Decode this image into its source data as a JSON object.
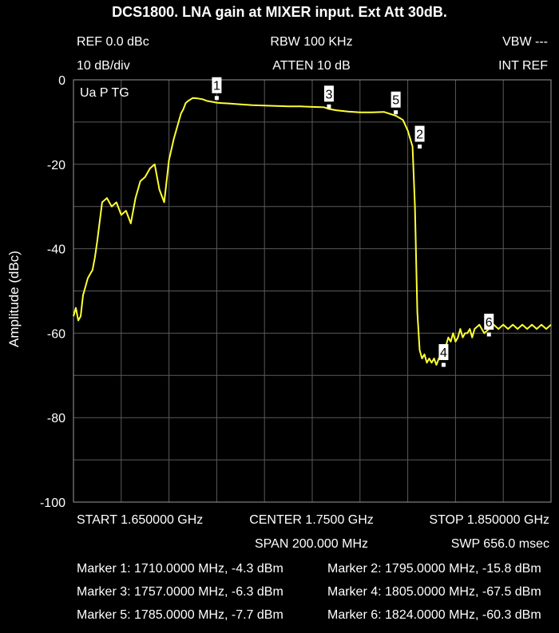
{
  "title": "DCS1800. LNA gain at MIXER input. Ext Att 30dB.",
  "header": {
    "ref": "REF 0.0 dBc",
    "rbw": "RBW 100 KHz",
    "vbw": "VBW ---",
    "scale": "10 dB/div",
    "atten": "ATTEN 10 dB",
    "intref": "INT REF"
  },
  "mode_label": "Ua P TG",
  "footer": {
    "start": "START 1.650000 GHz",
    "center": "CENTER 1.7500 GHz",
    "stop": "STOP 1.850000 GHz",
    "span": "SPAN 200.000 MHz",
    "swp": "SWP 656.0 msec"
  },
  "marker_readouts": [
    "Marker 1: 1710.0000 MHz, -4.3 dBm",
    "Marker 2: 1795.0000 MHz, -15.8 dBm",
    "Marker 3: 1757.0000 MHz, -6.3 dBm",
    "Marker 4: 1805.0000 MHz, -67.5 dBm",
    "Marker 5: 1785.0000 MHz, -7.7 dBm",
    "Marker 6: 1824.0000 MHz, -60.3 dBm"
  ],
  "colors": {
    "trace": "#ffff33",
    "grid": "#5a5a5a",
    "background": "#000000"
  },
  "chart_data": {
    "type": "line",
    "title": "DCS1800. LNA gain at MIXER input. Ext Att 30dB.",
    "xlabel": "",
    "ylabel": "Amplitude (dBc)",
    "xlim": [
      1650,
      1850
    ],
    "ylim": [
      -100,
      0
    ],
    "x_unit": "MHz",
    "y_ticks": [
      0,
      -20,
      -40,
      -60,
      -80,
      -100
    ],
    "y_tick_labels": [
      "0",
      "-20",
      "-40",
      "-60",
      "-80",
      "-100"
    ],
    "grid": true,
    "series": [
      {
        "x": [
          1650,
          1651,
          1652,
          1653,
          1654,
          1655,
          1656,
          1657,
          1658,
          1659,
          1660,
          1662,
          1664,
          1666,
          1668,
          1670,
          1672,
          1674,
          1676,
          1678,
          1680,
          1682,
          1684,
          1686,
          1688,
          1690,
          1692,
          1694,
          1695,
          1696,
          1697,
          1698,
          1700,
          1702,
          1704,
          1706,
          1708,
          1710,
          1712,
          1715,
          1720,
          1725,
          1730,
          1735,
          1740,
          1745,
          1750,
          1755,
          1757,
          1760,
          1765,
          1770,
          1775,
          1780,
          1785,
          1788,
          1790,
          1792,
          1793,
          1794,
          1795,
          1796,
          1797,
          1798,
          1799,
          1800,
          1801,
          1802,
          1803,
          1804,
          1805,
          1806,
          1807,
          1808,
          1809,
          1810,
          1811,
          1812,
          1813,
          1814,
          1815,
          1816,
          1817,
          1818,
          1820,
          1822,
          1824,
          1826,
          1828,
          1830,
          1832,
          1834,
          1836,
          1838,
          1840,
          1842,
          1844,
          1846,
          1848,
          1850
        ],
        "y": [
          -56,
          -54,
          -57,
          -56,
          -51,
          -49,
          -47,
          -46,
          -45,
          -42,
          -38,
          -29,
          -28,
          -30,
          -29,
          -32,
          -31,
          -34,
          -28,
          -24,
          -23,
          -21,
          -20,
          -26,
          -29,
          -19,
          -14,
          -10,
          -8,
          -7,
          -5.5,
          -5,
          -4.3,
          -4.4,
          -4.6,
          -5,
          -5.2,
          -5.4,
          -5.5,
          -5.6,
          -5.8,
          -6,
          -6.1,
          -6.2,
          -6.3,
          -6.3,
          -6.4,
          -6.5,
          -6.9,
          -7.2,
          -7.5,
          -7.7,
          -7.7,
          -7.6,
          -8.5,
          -9.5,
          -12,
          -15.8,
          -30,
          -55,
          -64,
          -66,
          -65,
          -67,
          -66,
          -67,
          -66,
          -67.5,
          -66,
          -65,
          -66,
          -63,
          -61,
          -62,
          -60,
          -62,
          -61,
          -59,
          -61,
          -60,
          -60,
          -59,
          -61,
          -59,
          -58,
          -60,
          -59,
          -58,
          -59,
          -58,
          -59,
          -58,
          -59,
          -58,
          -59,
          -58,
          -59,
          -58,
          -59,
          -58
        ]
      }
    ],
    "markers": [
      {
        "label": "1",
        "x": 1710,
        "y": -4.3
      },
      {
        "label": "2",
        "x": 1795,
        "y": -15.8
      },
      {
        "label": "3",
        "x": 1757,
        "y": -6.3
      },
      {
        "label": "4",
        "x": 1805,
        "y": -67.5
      },
      {
        "label": "5",
        "x": 1785,
        "y": -7.7
      },
      {
        "label": "6",
        "x": 1824,
        "y": -60.3
      }
    ]
  }
}
